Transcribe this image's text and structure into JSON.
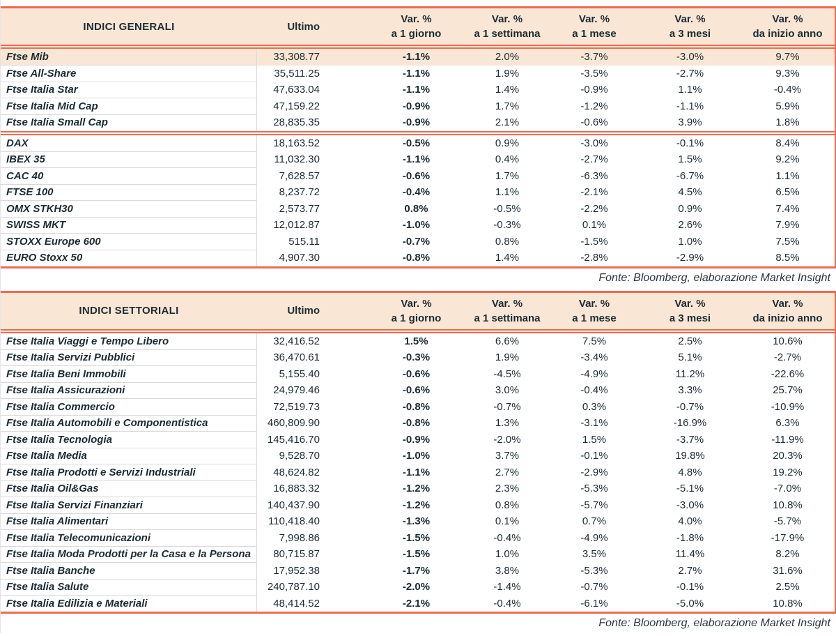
{
  "colors": {
    "accent_salmon": "#EE6A50",
    "header_peach": "#FAE6D5",
    "text_dark": "#1C2B33",
    "row_line_gray": "#D9D9D9"
  },
  "columns": {
    "ultimo": "Ultimo",
    "var": [
      {
        "line1": "Var. %",
        "line2": "a 1 giorno"
      },
      {
        "line1": "Var. %",
        "line2": "a 1 settimana"
      },
      {
        "line1": "Var. %",
        "line2": "a 1 mese"
      },
      {
        "line1": "Var. %",
        "line2": "a 3 mesi"
      },
      {
        "line1": "Var. %",
        "line2": "da inizio anno"
      }
    ]
  },
  "general_table": {
    "title": "INDICI GENERALI",
    "source": "Fonte: Bloomberg, elaborazione Market Insight",
    "italian_rows": [
      {
        "name": "Ftse Mib",
        "ultimo": "33,308.77",
        "d1": "-1.1%",
        "w1": "2.0%",
        "m1": "-3.7%",
        "m3": "-3.0%",
        "ytd": "9.7%",
        "highlight": true
      },
      {
        "name": "Ftse All-Share",
        "ultimo": "35,511.25",
        "d1": "-1.1%",
        "w1": "1.9%",
        "m1": "-3.5%",
        "m3": "-2.7%",
        "ytd": "9.3%"
      },
      {
        "name": "Ftse Italia Star",
        "ultimo": "47,633.04",
        "d1": "-1.1%",
        "w1": "1.4%",
        "m1": "-0.9%",
        "m3": "1.1%",
        "ytd": "-0.4%"
      },
      {
        "name": "Ftse Italia Mid Cap",
        "ultimo": "47,159.22",
        "d1": "-0.9%",
        "w1": "1.7%",
        "m1": "-1.2%",
        "m3": "-1.1%",
        "ytd": "5.9%"
      },
      {
        "name": "Ftse Italia Small Cap",
        "ultimo": "28,835.35",
        "d1": "-0.9%",
        "w1": "2.1%",
        "m1": "-0.6%",
        "m3": "3.9%",
        "ytd": "1.8%"
      }
    ],
    "international_rows": [
      {
        "name": "DAX",
        "ultimo": "18,163.52",
        "d1": "-0.5%",
        "w1": "0.9%",
        "m1": "-3.0%",
        "m3": "-0.1%",
        "ytd": "8.4%"
      },
      {
        "name": "IBEX 35",
        "ultimo": "11,032.30",
        "d1": "-1.1%",
        "w1": "0.4%",
        "m1": "-2.7%",
        "m3": "1.5%",
        "ytd": "9.2%"
      },
      {
        "name": "CAC 40",
        "ultimo": "7,628.57",
        "d1": "-0.6%",
        "w1": "1.7%",
        "m1": "-6.3%",
        "m3": "-6.7%",
        "ytd": "1.1%"
      },
      {
        "name": "FTSE 100",
        "ultimo": "8,237.72",
        "d1": "-0.4%",
        "w1": "1.1%",
        "m1": "-2.1%",
        "m3": "4.5%",
        "ytd": "6.5%"
      },
      {
        "name": "OMX STKH30",
        "ultimo": "2,573.77",
        "d1": "0.8%",
        "w1": "-0.5%",
        "m1": "-2.2%",
        "m3": "0.9%",
        "ytd": "7.4%"
      },
      {
        "name": "SWISS MKT",
        "ultimo": "12,012.87",
        "d1": "-1.0%",
        "w1": "-0.3%",
        "m1": "0.1%",
        "m3": "2.6%",
        "ytd": "7.9%"
      },
      {
        "name": "STOXX Europe 600",
        "ultimo": "515.11",
        "d1": "-0.7%",
        "w1": "0.8%",
        "m1": "-1.5%",
        "m3": "1.0%",
        "ytd": "7.5%"
      },
      {
        "name": "EURO Stoxx 50",
        "ultimo": "4,907.30",
        "d1": "-0.8%",
        "w1": "1.4%",
        "m1": "-2.8%",
        "m3": "-2.9%",
        "ytd": "8.5%"
      }
    ]
  },
  "sector_table": {
    "title": "INDICI SETTORIALI",
    "source": "Fonte: Bloomberg, elaborazione Market Insight",
    "rows": [
      {
        "name": "Ftse Italia Viaggi e Tempo Libero",
        "ultimo": "32,416.52",
        "d1": "1.5%",
        "w1": "6.6%",
        "m1": "7.5%",
        "m3": "2.5%",
        "ytd": "10.6%"
      },
      {
        "name": "Ftse Italia Servizi Pubblici",
        "ultimo": "36,470.61",
        "d1": "-0.3%",
        "w1": "1.9%",
        "m1": "-3.4%",
        "m3": "5.1%",
        "ytd": "-2.7%"
      },
      {
        "name": "Ftse Italia Beni Immobili",
        "ultimo": "5,155.40",
        "d1": "-0.6%",
        "w1": "-4.5%",
        "m1": "-4.9%",
        "m3": "11.2%",
        "ytd": "-22.6%"
      },
      {
        "name": "Ftse Italia Assicurazioni",
        "ultimo": "24,979.46",
        "d1": "-0.6%",
        "w1": "3.0%",
        "m1": "-0.4%",
        "m3": "3.3%",
        "ytd": "25.7%"
      },
      {
        "name": "Ftse Italia Commercio",
        "ultimo": "72,519.73",
        "d1": "-0.8%",
        "w1": "-0.7%",
        "m1": "0.3%",
        "m3": "-0.7%",
        "ytd": "-10.9%"
      },
      {
        "name": "Ftse Italia Automobili e Componentistica",
        "ultimo": "460,809.90",
        "d1": "-0.8%",
        "w1": "1.3%",
        "m1": "-3.1%",
        "m3": "-16.9%",
        "ytd": "6.3%"
      },
      {
        "name": "Ftse Italia Tecnologia",
        "ultimo": "145,416.70",
        "d1": "-0.9%",
        "w1": "-2.0%",
        "m1": "1.5%",
        "m3": "-3.7%",
        "ytd": "-11.9%"
      },
      {
        "name": "Ftse Italia Media",
        "ultimo": "9,528.70",
        "d1": "-1.0%",
        "w1": "3.7%",
        "m1": "-0.1%",
        "m3": "19.8%",
        "ytd": "20.3%"
      },
      {
        "name": "Ftse Italia Prodotti e Servizi Industriali",
        "ultimo": "48,624.82",
        "d1": "-1.1%",
        "w1": "2.7%",
        "m1": "-2.9%",
        "m3": "4.8%",
        "ytd": "19.2%"
      },
      {
        "name": "Ftse Italia Oil&Gas",
        "ultimo": "16,883.32",
        "d1": "-1.2%",
        "w1": "2.3%",
        "m1": "-5.3%",
        "m3": "-5.1%",
        "ytd": "-7.0%"
      },
      {
        "name": "Ftse Italia Servizi Finanziari",
        "ultimo": "140,437.90",
        "d1": "-1.2%",
        "w1": "0.8%",
        "m1": "-5.7%",
        "m3": "-3.0%",
        "ytd": "10.8%"
      },
      {
        "name": "Ftse Italia Alimentari",
        "ultimo": "110,418.40",
        "d1": "-1.3%",
        "w1": "0.1%",
        "m1": "0.7%",
        "m3": "4.0%",
        "ytd": "-5.7%"
      },
      {
        "name": "Ftse Italia Telecomunicazioni",
        "ultimo": "7,998.86",
        "d1": "-1.5%",
        "w1": "-0.4%",
        "m1": "-4.9%",
        "m3": "-1.8%",
        "ytd": "-17.9%"
      },
      {
        "name": "Ftse Italia Moda Prodotti per la Casa e la Persona",
        "ultimo": "80,715.87",
        "d1": "-1.5%",
        "w1": "1.0%",
        "m1": "3.5%",
        "m3": "11.4%",
        "ytd": "8.2%"
      },
      {
        "name": "Ftse Italia Banche",
        "ultimo": "17,952.38",
        "d1": "-1.7%",
        "w1": "3.8%",
        "m1": "-5.3%",
        "m3": "2.7%",
        "ytd": "31.6%"
      },
      {
        "name": "Ftse Italia Salute",
        "ultimo": "240,787.10",
        "d1": "-2.0%",
        "w1": "-1.4%",
        "m1": "-0.7%",
        "m3": "-0.1%",
        "ytd": "2.5%"
      },
      {
        "name": "Ftse Italia Edilizia e Materiali",
        "ultimo": "48,414.52",
        "d1": "-2.1%",
        "w1": "-0.4%",
        "m1": "-6.1%",
        "m3": "-5.0%",
        "ytd": "10.8%"
      }
    ]
  }
}
